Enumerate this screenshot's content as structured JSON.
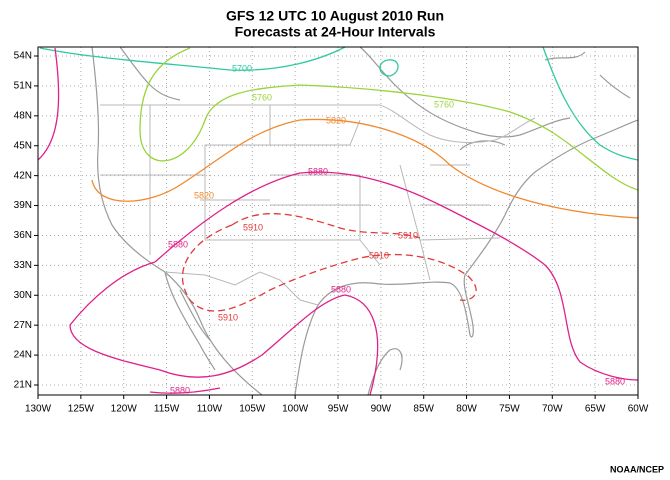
{
  "header": {
    "title": "GFS 12 UTC 10 August 2010 Run",
    "subtitle": "Forecasts at 24-Hour Intervals"
  },
  "map": {
    "lonticks": [
      {
        "value": -130,
        "label": "130W"
      },
      {
        "value": -125,
        "label": "125W"
      },
      {
        "value": -120,
        "label": "120W"
      },
      {
        "value": -115,
        "label": "115W"
      },
      {
        "value": -110,
        "label": "110W"
      },
      {
        "value": -105,
        "label": "105W"
      },
      {
        "value": -100,
        "label": "100W"
      },
      {
        "value": -95,
        "label": "95W"
      },
      {
        "value": -90,
        "label": "90W"
      },
      {
        "value": -85,
        "label": "85W"
      },
      {
        "value": -80,
        "label": "80W"
      },
      {
        "value": -75,
        "label": "75W"
      },
      {
        "value": -70,
        "label": "70W"
      },
      {
        "value": -65,
        "label": "65W"
      },
      {
        "value": -60,
        "label": "60W"
      }
    ],
    "latticks": [
      {
        "value": 54,
        "label": "54N"
      },
      {
        "value": 51,
        "label": "51N"
      },
      {
        "value": 48,
        "label": "48N"
      },
      {
        "value": 45,
        "label": "45N"
      },
      {
        "value": 42,
        "label": "42N"
      },
      {
        "value": 39,
        "label": "39N"
      },
      {
        "value": 36,
        "label": "36N"
      },
      {
        "value": 33,
        "label": "33N"
      },
      {
        "value": 30,
        "label": "30N"
      },
      {
        "value": 27,
        "label": "27N"
      },
      {
        "value": 24,
        "label": "24N"
      },
      {
        "value": 21,
        "label": "21N"
      }
    ],
    "contour_labels": [
      {
        "text": "5700",
        "color": "#2fc9a0"
      },
      {
        "text": "5760",
        "color": "#9ad43a"
      },
      {
        "text": "5760",
        "color": "#9ad43a"
      },
      {
        "text": "5820",
        "color": "#f08a30"
      },
      {
        "text": "5820",
        "color": "#f08a30"
      },
      {
        "text": "5880",
        "color": "#e0208a"
      },
      {
        "text": "5880",
        "color": "#e0208a"
      },
      {
        "text": "5880",
        "color": "#e0208a"
      },
      {
        "text": "5880",
        "color": "#e0208a"
      },
      {
        "text": "5880",
        "color": "#e0208a"
      },
      {
        "text": "5910",
        "color": "#e03a3a"
      },
      {
        "text": "5910",
        "color": "#e03a3a"
      },
      {
        "text": "5910",
        "color": "#e03a3a"
      },
      {
        "text": "5910",
        "color": "#e03a3a"
      }
    ]
  },
  "footer": {
    "credit": "NOAA/NCEP"
  }
}
